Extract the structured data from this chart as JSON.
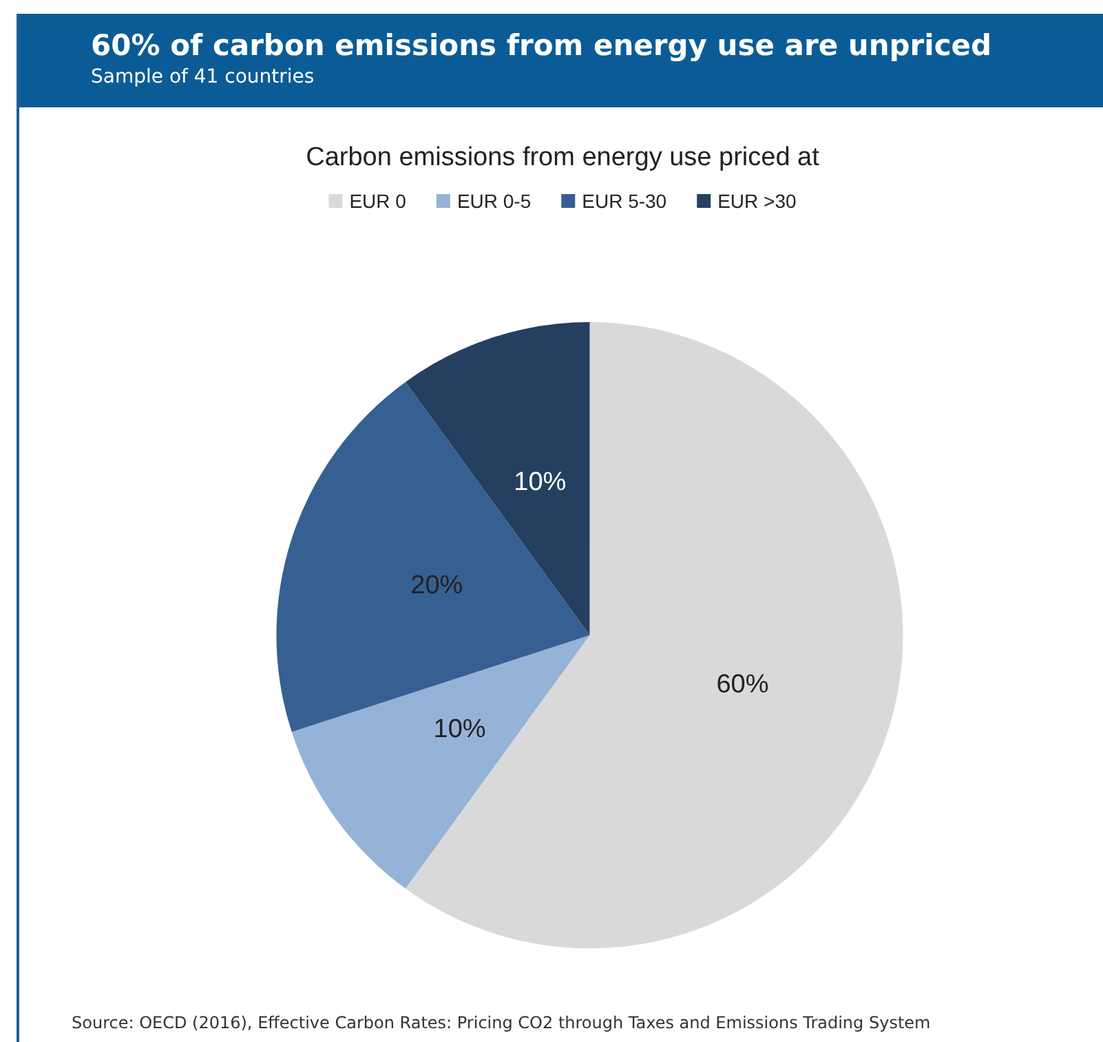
{
  "chart_data": {
    "type": "pie",
    "title": "60% of carbon emissions from energy use are unpriced",
    "subtitle": "Sample of 41 countries",
    "legend_title": "Carbon emissions from energy use priced at",
    "categories": [
      "EUR 0",
      "EUR 0-5",
      "EUR 5-30",
      "EUR >30"
    ],
    "values": [
      60,
      10,
      20,
      10
    ],
    "colors": [
      "#d9d9d9",
      "#95b3d7",
      "#366092",
      "#243f60"
    ],
    "value_labels": [
      "60%",
      "10%",
      "20%",
      "10%"
    ],
    "legend": "top",
    "annotations": [
      "Source: OECD (2016), Effective Carbon Rates: Pricing CO2 through Taxes and Emissions Trading System"
    ]
  }
}
